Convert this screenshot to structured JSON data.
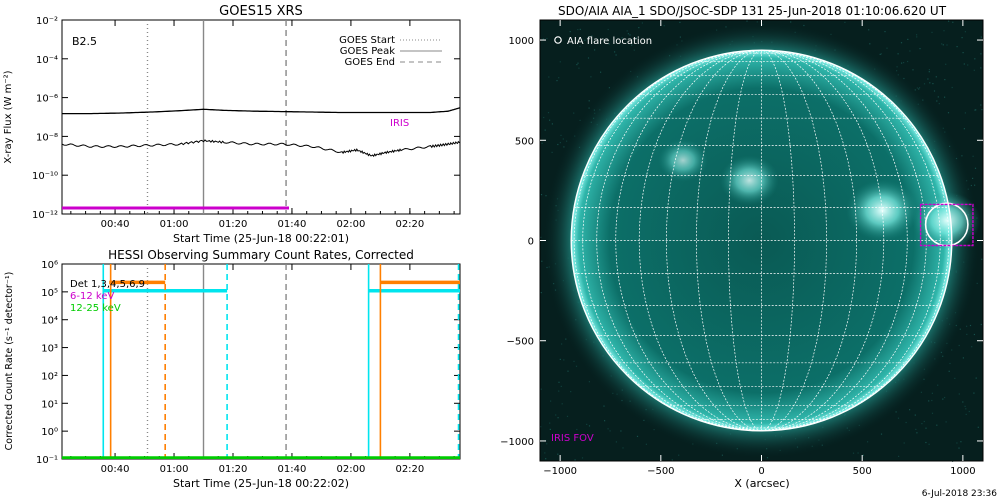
{
  "chart_data": [
    {
      "type": "line",
      "title": "GOES15 XRS",
      "xlabel": "Start Time (25-Jun-18 00:22:01)",
      "ylabel": "X-ray Flux (W m⁻²)",
      "x_ticks": [
        "00:40",
        "01:00",
        "01:20",
        "01:40",
        "02:00",
        "02:20"
      ],
      "x_tick_minutes": [
        18,
        38,
        58,
        78,
        98,
        118
      ],
      "xlim_minutes": [
        0,
        135
      ],
      "y_scale": "log",
      "ylim": [
        1e-12,
        0.01
      ],
      "y_ticks": [
        "10⁻¹²",
        "10⁻¹⁰",
        "10⁻⁸",
        "10⁻⁶",
        "10⁻⁴",
        "10⁻²"
      ],
      "y_tick_values": [
        1e-12,
        1e-10,
        1e-08,
        1e-06,
        0.0001,
        0.01
      ],
      "class_label": "B2.5",
      "legend": [
        "GOES Start",
        "GOES Peak",
        "GOES End"
      ],
      "legend_placement": "top-right",
      "event_lines": [
        {
          "name": "GOES Start",
          "x_minutes": 29,
          "style": "dotted",
          "color": "#888888"
        },
        {
          "name": "GOES Peak",
          "x_minutes": 48,
          "style": "solid",
          "color": "#888888"
        },
        {
          "name": "GOES End",
          "x_minutes": 76,
          "style": "dashed",
          "color": "#888888"
        }
      ],
      "iris_label": "IRIS",
      "iris_color": "#cc00cc",
      "iris_interval_minutes": [
        0,
        77
      ],
      "series": [
        {
          "x_minutes": [
            0,
            10,
            20,
            30,
            40,
            48,
            55,
            65,
            75,
            85,
            95,
            105,
            115,
            125,
            131,
            135
          ],
          "values": [
            1.5e-07,
            1.5e-07,
            1.6e-07,
            1.8e-07,
            2.1e-07,
            2.5e-07,
            2.2e-07,
            2e-07,
            1.9e-07,
            1.8e-07,
            1.7e-07,
            1.7e-07,
            1.7e-07,
            1.7e-07,
            2e-07,
            3e-07
          ],
          "color": "#000000"
        },
        {
          "x_minutes": [
            0,
            10,
            20,
            30,
            40,
            48,
            55,
            65,
            75,
            85,
            95,
            100,
            105,
            110,
            115,
            125,
            131,
            135
          ],
          "values": [
            4e-09,
            3e-09,
            3e-09,
            3.5e-09,
            4e-09,
            6e-09,
            5e-09,
            4e-09,
            4e-09,
            3e-09,
            1.5e-09,
            2e-09,
            1e-09,
            1.5e-09,
            2e-09,
            3e-09,
            4e-09,
            5e-09
          ],
          "color": "#000000"
        }
      ]
    },
    {
      "type": "line",
      "title": "HESSI Observing Summary Count Rates, Corrected",
      "xlabel": "Start Time (25-Jun-18 00:22:02)",
      "ylabel": "Corrected Count Rate (s⁻¹ detector⁻¹)",
      "x_ticks": [
        "00:40",
        "01:00",
        "01:20",
        "01:40",
        "02:00",
        "02:20"
      ],
      "x_tick_minutes": [
        18,
        38,
        58,
        78,
        98,
        118
      ],
      "xlim_minutes": [
        0,
        135
      ],
      "y_scale": "log",
      "ylim": [
        0.1,
        1000000.0
      ],
      "y_ticks": [
        "10⁻¹",
        "10⁰",
        "10¹",
        "10²",
        "10³",
        "10⁴",
        "10⁵",
        "10⁶"
      ],
      "y_tick_values": [
        0.1,
        1,
        10,
        100,
        1000,
        10000,
        100000,
        1000000
      ],
      "legend": [
        {
          "label": "Det 1,3,4,5,6,9",
          "color": "#000000"
        },
        {
          "label": "6-12 keV",
          "color": "#cc00cc"
        },
        {
          "label": "12-25 keV",
          "color": "#00cc00"
        }
      ],
      "legend_placement": "top-left",
      "event_lines": [
        {
          "x_minutes": 29,
          "style": "dotted",
          "color": "#888888"
        },
        {
          "x_minutes": 48,
          "style": "solid",
          "color": "#888888"
        },
        {
          "x_minutes": 76,
          "style": "dashed",
          "color": "#888888"
        }
      ],
      "series": [
        {
          "name": "6-12 keV",
          "color": "#00e5ee",
          "segments": [
            {
              "x": [
                14,
                56
              ],
              "value": 110000.0
            },
            {
              "x": [
                104,
                135
              ],
              "value": 110000.0
            }
          ],
          "verticals": [
            {
              "x": 14,
              "style": "solid"
            },
            {
              "x": 56,
              "style": "dashed"
            },
            {
              "x": 104,
              "style": "solid"
            },
            {
              "x": 134.5,
              "style": "dashed"
            }
          ]
        },
        {
          "name": "12-25 keV",
          "color": "#ff7f00",
          "segments": [
            {
              "x": [
                16,
                35
              ],
              "value": 220000.0
            },
            {
              "x": [
                108,
                135
              ],
              "value": 220000.0
            }
          ],
          "verticals": [
            {
              "x": 16.5,
              "style": "solid"
            },
            {
              "x": 35,
              "style": "dashed"
            },
            {
              "x": 108,
              "style": "solid"
            }
          ]
        },
        {
          "name": "baseline",
          "color": "#00cc00",
          "segments": [
            {
              "x": [
                0,
                135
              ],
              "value": 0.1
            }
          ],
          "verticals": []
        }
      ]
    },
    {
      "type": "scatter",
      "title": "SDO/AIA AIA_1 SDO/JSOC-SDP 131 25-Jun-2018 01:10:06.620 UT",
      "xlabel": "X (arcsec)",
      "ylabel": "",
      "xlim": [
        -1100,
        1100
      ],
      "ylim": [
        -1100,
        1100
      ],
      "x_ticks": [
        -1000,
        -500,
        0,
        500,
        1000
      ],
      "y_ticks": [
        -1000,
        -500,
        0,
        500,
        1000
      ],
      "solar_radius_arcsec": 945,
      "grid_spacing_deg": 10,
      "flare_location": {
        "x": 920,
        "y": 80,
        "radius": 105
      },
      "iris_fov": {
        "x": [
          790,
          1050
        ],
        "y": [
          -25,
          180
        ]
      },
      "flare_label": "AIA flare location",
      "iris_fov_label": "IRIS FOV",
      "bright_regions": [
        {
          "x": 600,
          "y": 150,
          "strength": 1.0
        },
        {
          "x": -60,
          "y": 300,
          "strength": 0.7
        },
        {
          "x": -390,
          "y": 400,
          "strength": 0.5
        },
        {
          "x": 920,
          "y": 100,
          "strength": 0.9
        }
      ]
    }
  ],
  "footer_date": "6-Jul-2018 23:36"
}
